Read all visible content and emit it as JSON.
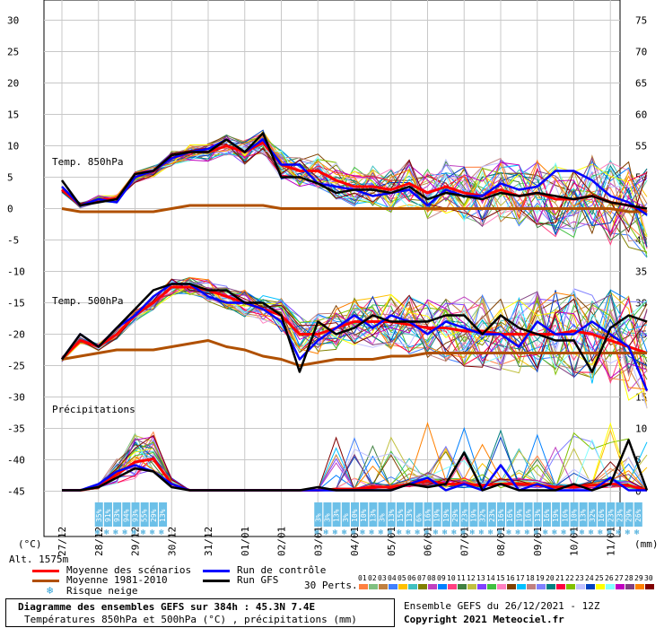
{
  "chart_data": {
    "type": "line",
    "title": "Diagramme des ensembles GEFS sur 384h : 45.3N 7.4E",
    "subtitle": "Températures 850hPa et 500hPa (°C) , précipitations (mm)",
    "run_info": "Ensemble GEFS du 26/12/2021 - 12Z",
    "copyright": "Copyright 2021 Meteociel.fr",
    "altitude_label": "Alt. 1575m",
    "left_axis": {
      "unit": "(°C)",
      "ticks": [
        30,
        25,
        20,
        15,
        10,
        5,
        0,
        -5,
        -10,
        -15,
        -20,
        -25,
        -30,
        -35,
        -40,
        -45
      ]
    },
    "right_axis": {
      "unit": "(mm)",
      "ticks": [
        75,
        70,
        65,
        60,
        55,
        50,
        45,
        40,
        35,
        30,
        25,
        20,
        15,
        10,
        5,
        0
      ]
    },
    "x_labels": [
      "27/12",
      "28/12",
      "29/12",
      "30/12",
      "31/12",
      "01/01",
      "02/01",
      "03/01",
      "04/01",
      "05/01",
      "06/01",
      "07/01",
      "08/01",
      "09/01",
      "10/01",
      "11/01"
    ],
    "panel_labels": {
      "t850": "Temp. 850hPa",
      "t500": "Temp. 500hPa",
      "precip": "Précipitations"
    },
    "legend": {
      "mean": "Moyenne des scénarios",
      "clim": "Moyenne 1981-2010",
      "snow": "Risque neige",
      "control": "Run de contrôle",
      "gfs": "Run GFS",
      "perts": "30 Perts."
    },
    "members": [
      "01",
      "02",
      "03",
      "04",
      "05",
      "06",
      "07",
      "08",
      "09",
      "10",
      "11",
      "12",
      "13",
      "14",
      "15",
      "16",
      "17",
      "18",
      "19",
      "20",
      "21",
      "22",
      "23",
      "24",
      "25",
      "26",
      "27",
      "28",
      "29",
      "30"
    ],
    "member_colors": [
      "#ff8040",
      "#80c080",
      "#c08040",
      "#4080ff",
      "#ffc000",
      "#40c0c0",
      "#808000",
      "#c040c0",
      "#0080ff",
      "#ff4080",
      "#408040",
      "#c0c040",
      "#8040ff",
      "#40c040",
      "#ff80c0",
      "#804000",
      "#00c0ff",
      "#c08080",
      "#8080ff",
      "#008080",
      "#ff0040",
      "#80c000",
      "#c0c0ff",
      "#0040c0",
      "#ffff00",
      "#80ffff",
      "#c000c0",
      "#804080",
      "#ff8000",
      "#800000"
    ],
    "snow_risk": [
      {
        "x": 1.0,
        "label": "35%"
      },
      {
        "x": 1.25,
        "label": "91%"
      },
      {
        "x": 1.5,
        "label": "93%"
      },
      {
        "x": 1.75,
        "label": "94%"
      },
      {
        "x": 2.0,
        "label": "93%"
      },
      {
        "x": 2.25,
        "label": "55%"
      },
      {
        "x": 2.5,
        "label": "29%"
      },
      {
        "x": 2.75,
        "label": "13%"
      },
      {
        "x": 7.0,
        "label": "3%"
      },
      {
        "x": 7.25,
        "label": "3%"
      },
      {
        "x": 7.5,
        "label": "13%"
      },
      {
        "x": 7.75,
        "label": "3%"
      },
      {
        "x": 8.0,
        "label": "10%"
      },
      {
        "x": 8.25,
        "label": "10%"
      },
      {
        "x": 8.5,
        "label": "13%"
      },
      {
        "x": 8.75,
        "label": "3%"
      },
      {
        "x": 9.0,
        "label": "13%"
      },
      {
        "x": 9.25,
        "label": "15%"
      },
      {
        "x": 9.5,
        "label": "13%"
      },
      {
        "x": 9.75,
        "label": "6%"
      },
      {
        "x": 10.0,
        "label": "16%"
      },
      {
        "x": 10.25,
        "label": "19%"
      },
      {
        "x": 10.5,
        "label": "19%"
      },
      {
        "x": 10.75,
        "label": "29%"
      },
      {
        "x": 11.0,
        "label": "23%"
      },
      {
        "x": 11.25,
        "label": "19%"
      },
      {
        "x": 11.5,
        "label": "32%"
      },
      {
        "x": 11.75,
        "label": "23%"
      },
      {
        "x": 12.0,
        "label": "16%"
      },
      {
        "x": 12.25,
        "label": "16%"
      },
      {
        "x": 12.5,
        "label": "19%"
      },
      {
        "x": 12.75,
        "label": "16%"
      },
      {
        "x": 13.0,
        "label": "13%"
      },
      {
        "x": 13.25,
        "label": "16%"
      },
      {
        "x": 13.5,
        "label": "19%"
      },
      {
        "x": 13.75,
        "label": "16%"
      },
      {
        "x": 14.0,
        "label": "10%"
      },
      {
        "x": 14.25,
        "label": "13%"
      },
      {
        "x": 14.5,
        "label": "32%"
      },
      {
        "x": 14.75,
        "label": "16%"
      },
      {
        "x": 15.0,
        "label": "23%"
      },
      {
        "x": 15.25,
        "label": "23%"
      },
      {
        "x": 15.5,
        "label": "29%"
      },
      {
        "x": 15.75,
        "label": "26%"
      }
    ],
    "x": [
      0,
      0.5,
      1,
      1.5,
      2,
      2.5,
      3,
      3.5,
      4,
      4.5,
      5,
      5.5,
      6,
      6.5,
      7,
      7.5,
      8,
      8.5,
      9,
      9.5,
      10,
      10.5,
      11,
      11.5,
      12,
      12.5,
      13,
      13.5,
      14,
      14.5,
      15,
      15.5,
      16
    ],
    "series": [
      {
        "name": "Moyenne des scénarios",
        "color": "#ff0000",
        "group": "t850",
        "values": [
          3,
          0.5,
          1.5,
          1.5,
          5,
          6,
          8,
          9,
          9,
          10,
          9,
          10.5,
          7,
          6,
          6,
          4.5,
          3.5,
          3.5,
          3,
          4,
          2.5,
          3.5,
          2.5,
          2,
          3,
          2,
          2.5,
          1.5,
          1.5,
          2,
          1,
          0.5,
          -0.5
        ]
      },
      {
        "name": "Moyenne 1981-2010",
        "color": "#b05000",
        "group": "t850",
        "values": [
          0,
          -0.5,
          -0.5,
          -0.5,
          -0.5,
          -0.5,
          0,
          0.5,
          0.5,
          0.5,
          0.5,
          0.5,
          0,
          0,
          0,
          0,
          0,
          0,
          0,
          0,
          0,
          0,
          0,
          0,
          0,
          0,
          0,
          0,
          0,
          0,
          0,
          -0.5,
          -0.5
        ]
      },
      {
        "name": "Run de contrôle",
        "color": "#0000ff",
        "group": "t850",
        "values": [
          3.5,
          0.5,
          1.5,
          1,
          5,
          6,
          8,
          9,
          9.5,
          11,
          9,
          11,
          7,
          7,
          4,
          3.5,
          3,
          2,
          2.5,
          3,
          0.5,
          3,
          2,
          2,
          4,
          3,
          3.5,
          6,
          6,
          4.5,
          2,
          1,
          -1
        ]
      },
      {
        "name": "Run GFS",
        "color": "#000000",
        "group": "t850",
        "values": [
          4.5,
          0.5,
          1,
          1.5,
          5.5,
          6,
          8.5,
          9,
          9,
          11,
          9,
          12,
          5,
          5,
          4,
          2.5,
          3,
          3,
          2.5,
          3.5,
          1.5,
          2.5,
          2,
          1.5,
          2.5,
          2,
          2.5,
          2,
          1.5,
          2,
          1,
          0.5,
          0
        ]
      },
      {
        "name": "Moyenne des scénarios",
        "color": "#ff0000",
        "group": "t500",
        "values": [
          -24,
          -21,
          -22,
          -20,
          -17,
          -15,
          -12.5,
          -12.5,
          -13,
          -14,
          -15,
          -16,
          -17,
          -20,
          -20,
          -19,
          -18,
          -18,
          -18,
          -18.5,
          -19,
          -19,
          -19.5,
          -19.5,
          -20,
          -20,
          -20,
          -20,
          -19.5,
          -20,
          -21,
          -22,
          -23
        ]
      },
      {
        "name": "Moyenne 1981-2010",
        "color": "#b05000",
        "group": "t500",
        "values": [
          -24,
          -23.5,
          -23,
          -22.5,
          -22.5,
          -22.5,
          -22,
          -21.5,
          -21,
          -22,
          -22.5,
          -23.5,
          -24,
          -25,
          -24.5,
          -24,
          -24,
          -24,
          -23.5,
          -23.5,
          -23,
          -23,
          -23,
          -23,
          -23,
          -23,
          -23,
          -23,
          -23,
          -23,
          -23,
          -23,
          -23
        ]
      },
      {
        "name": "Run de contrôle",
        "color": "#0000ff",
        "group": "t500",
        "values": [
          -24,
          -20,
          -22,
          -19,
          -17,
          -14,
          -12,
          -12,
          -14,
          -15,
          -15,
          -16,
          -18,
          -24,
          -21,
          -19,
          -17,
          -19,
          -17,
          -18,
          -20,
          -18,
          -19,
          -20,
          -20,
          -22,
          -18,
          -20,
          -20,
          -18,
          -20,
          -22,
          -29
        ]
      },
      {
        "name": "Run GFS",
        "color": "#000000",
        "group": "t500",
        "values": [
          -24,
          -20,
          -22,
          -19,
          -16,
          -13,
          -12,
          -12,
          -13,
          -13,
          -15,
          -15,
          -17,
          -26,
          -18,
          -20,
          -19,
          -17,
          -18,
          -18,
          -18,
          -17,
          -17,
          -20,
          -17,
          -19,
          -20,
          -21,
          -21,
          -26,
          -19,
          -17,
          -18
        ]
      },
      {
        "name": "Moyenne des scénarios",
        "color": "#ff0000",
        "group": "precip",
        "values": [
          0,
          0,
          0.5,
          2.5,
          4.5,
          5,
          1,
          0,
          0,
          0,
          0,
          0,
          0,
          0,
          0,
          0.2,
          0.2,
          0.5,
          0.5,
          1,
          1.5,
          1,
          1,
          0.8,
          1,
          1,
          0.8,
          0.5,
          0.5,
          0.8,
          1,
          0.8,
          0
        ]
      },
      {
        "name": "Run de contrôle",
        "color": "#0000ff",
        "group": "precip",
        "values": [
          0,
          0,
          1,
          3,
          4,
          3,
          1,
          0,
          0,
          0,
          0,
          0,
          0,
          0,
          0,
          0,
          0,
          0,
          0,
          1,
          2,
          0,
          1,
          0,
          4,
          0,
          1,
          0,
          0,
          0,
          2,
          0,
          0
        ]
      },
      {
        "name": "Run GFS",
        "color": "#000000",
        "group": "precip",
        "values": [
          0,
          0,
          0.5,
          2,
          3.5,
          3,
          0.5,
          0,
          0,
          0,
          0,
          0,
          0,
          0,
          0.5,
          0,
          0,
          0,
          0,
          1,
          0.5,
          1,
          6,
          0,
          1,
          0,
          0,
          0,
          1,
          0,
          1,
          8,
          0
        ]
      }
    ]
  }
}
